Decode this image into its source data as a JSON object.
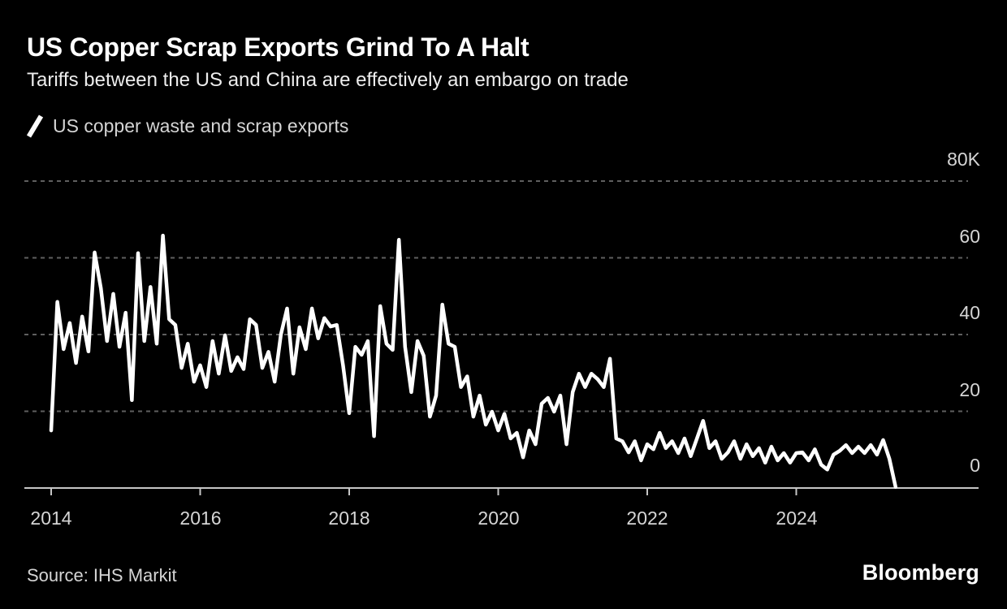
{
  "header": {
    "title": "US Copper Scrap Exports Grind To A Halt",
    "subtitle": "Tariffs between the US and China are effectively an embargo on trade"
  },
  "legend": {
    "marker_icon": "line-slash-icon",
    "series_label": "US copper waste and scrap exports"
  },
  "footer": {
    "source": "Source: IHS Markit",
    "brand": "Bloomberg"
  },
  "colors": {
    "background": "#000000",
    "series_line": "#ffffff",
    "grid": "#5f5f5f",
    "axis": "#c6c6c6",
    "labels": "#d5d5d5"
  },
  "chart_data": {
    "type": "line",
    "title": "US copper waste and scrap exports",
    "unit": "thousand tonnes (K)",
    "ylim": [
      0,
      80
    ],
    "grid": "horizontal dashed",
    "legend_position": "top-left",
    "y_ticks": [
      "80K",
      "60",
      "40",
      "20",
      "0"
    ],
    "y_tick_values": [
      80,
      60,
      40,
      20,
      0
    ],
    "x_ticks": [
      "2014",
      "2016",
      "2018",
      "2020",
      "2022",
      "2024"
    ],
    "x": [
      "2014-01",
      "2014-02",
      "2014-03",
      "2014-04",
      "2014-05",
      "2014-06",
      "2014-07",
      "2014-08",
      "2014-09",
      "2014-10",
      "2014-11",
      "2014-12",
      "2015-01",
      "2015-02",
      "2015-03",
      "2015-04",
      "2015-05",
      "2015-06",
      "2015-07",
      "2015-08",
      "2015-09",
      "2015-10",
      "2015-11",
      "2015-12",
      "2016-01",
      "2016-02",
      "2016-03",
      "2016-04",
      "2016-05",
      "2016-06",
      "2016-07",
      "2016-08",
      "2016-09",
      "2016-10",
      "2016-11",
      "2016-12",
      "2017-01",
      "2017-02",
      "2017-03",
      "2017-04",
      "2017-05",
      "2017-06",
      "2017-07",
      "2017-08",
      "2017-09",
      "2017-10",
      "2017-11",
      "2017-12",
      "2018-01",
      "2018-02",
      "2018-03",
      "2018-04",
      "2018-05",
      "2018-06",
      "2018-07",
      "2018-08",
      "2018-09",
      "2018-10",
      "2018-11",
      "2018-12",
      "2019-01",
      "2019-02",
      "2019-03",
      "2019-04",
      "2019-05",
      "2019-06",
      "2019-07",
      "2019-08",
      "2019-09",
      "2019-10",
      "2019-11",
      "2019-12",
      "2020-01",
      "2020-02",
      "2020-03",
      "2020-04",
      "2020-05",
      "2020-06",
      "2020-07",
      "2020-08",
      "2020-09",
      "2020-10",
      "2020-11",
      "2020-12",
      "2021-01",
      "2021-02",
      "2021-03",
      "2021-04",
      "2021-05",
      "2021-06",
      "2021-07",
      "2021-08",
      "2021-09",
      "2021-10",
      "2021-11",
      "2021-12",
      "2022-01",
      "2022-02",
      "2022-03",
      "2022-04",
      "2022-05",
      "2022-06",
      "2022-07",
      "2022-08",
      "2022-09",
      "2022-10",
      "2022-11",
      "2022-12",
      "2023-01",
      "2023-02",
      "2023-03",
      "2023-04",
      "2023-05",
      "2023-06",
      "2023-07",
      "2023-08",
      "2023-09",
      "2023-10",
      "2023-11",
      "2023-12",
      "2024-01",
      "2024-02",
      "2024-03",
      "2024-04",
      "2024-05",
      "2024-06",
      "2024-07",
      "2024-08",
      "2024-09",
      "2024-10",
      "2024-11",
      "2024-12",
      "2025-01",
      "2025-02",
      "2025-03",
      "2025-04",
      "2025-05"
    ],
    "values": [
      15.0,
      48.5,
      36.2,
      43.0,
      32.6,
      44.7,
      35.6,
      61.4,
      52.1,
      38.3,
      50.6,
      36.8,
      45.7,
      22.9,
      61.2,
      38.3,
      52.4,
      37.6,
      65.8,
      44.0,
      42.5,
      31.3,
      37.6,
      27.7,
      32.0,
      26.3,
      38.3,
      29.8,
      39.8,
      30.5,
      34.1,
      31.0,
      44.0,
      42.5,
      31.3,
      35.5,
      27.7,
      40.0,
      46.8,
      29.8,
      41.9,
      36.2,
      46.8,
      39.0,
      44.3,
      42.1,
      42.5,
      32.0,
      19.5,
      36.8,
      34.7,
      38.3,
      13.5,
      47.4,
      37.6,
      36.0,
      64.7,
      36.8,
      25.0,
      38.3,
      34.5,
      18.6,
      24.1,
      47.8,
      37.6,
      36.8,
      26.3,
      29.1,
      18.6,
      24.1,
      16.5,
      19.9,
      15.0,
      19.3,
      12.9,
      14.4,
      8.0,
      15.0,
      11.4,
      22.0,
      23.5,
      19.9,
      24.1,
      11.4,
      25.0,
      29.8,
      26.3,
      29.8,
      28.4,
      26.3,
      33.7,
      12.9,
      12.2,
      9.3,
      12.2,
      7.2,
      11.4,
      10.1,
      14.4,
      10.4,
      12.2,
      9.1,
      12.9,
      8.3,
      12.9,
      17.5,
      10.4,
      12.2,
      7.6,
      9.3,
      12.2,
      7.6,
      11.4,
      8.3,
      10.4,
      6.6,
      10.8,
      7.2,
      9.1,
      6.6,
      9.1,
      9.3,
      7.2,
      10.1,
      6.1,
      4.8,
      8.7,
      9.7,
      11.2,
      9.1,
      10.8,
      9.1,
      11.2,
      8.7,
      12.5,
      7.6,
      0.3
    ]
  }
}
